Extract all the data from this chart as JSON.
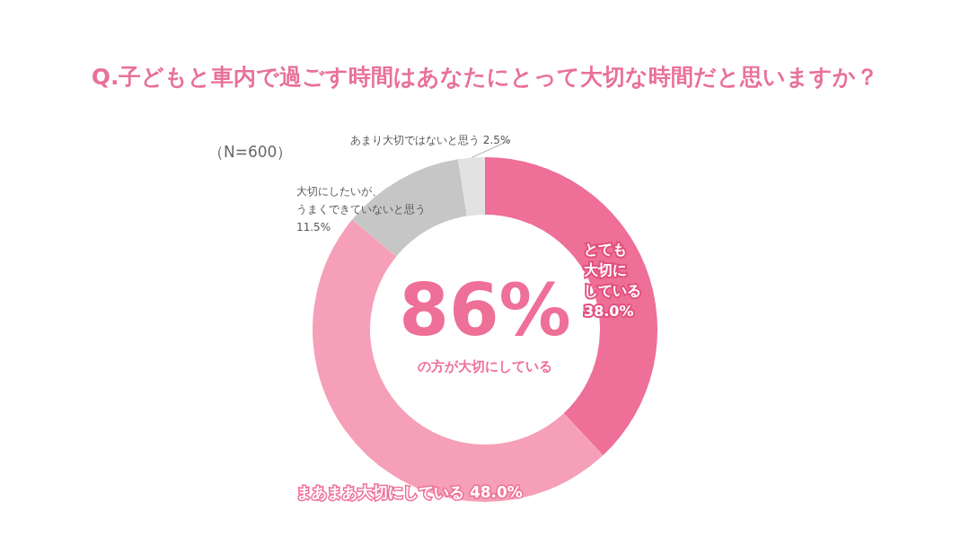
{
  "chart_data": {
    "type": "donut",
    "title": "Q.子どもと車内で過ごす時間はあなたにとって大切な時間だと思いますか？",
    "categories": [
      "とても大切にしている",
      "まあまあ大切にしている",
      "大切にしたいが、うまくできていないと思う",
      "あまり大切ではないと思う"
    ],
    "values": [
      38.0,
      48.0,
      11.5,
      2.5
    ],
    "value_labels": [
      "38.0%",
      "48.0%",
      "11.5%",
      "2.5%"
    ],
    "colors": [
      "#ee6f97",
      "#f5a0b8",
      "#c6c6c6",
      "#e2e2e2"
    ],
    "annotations": [
      "86%",
      "の方が大切にしている",
      "（N=600）"
    ],
    "legend": false
  }
}
